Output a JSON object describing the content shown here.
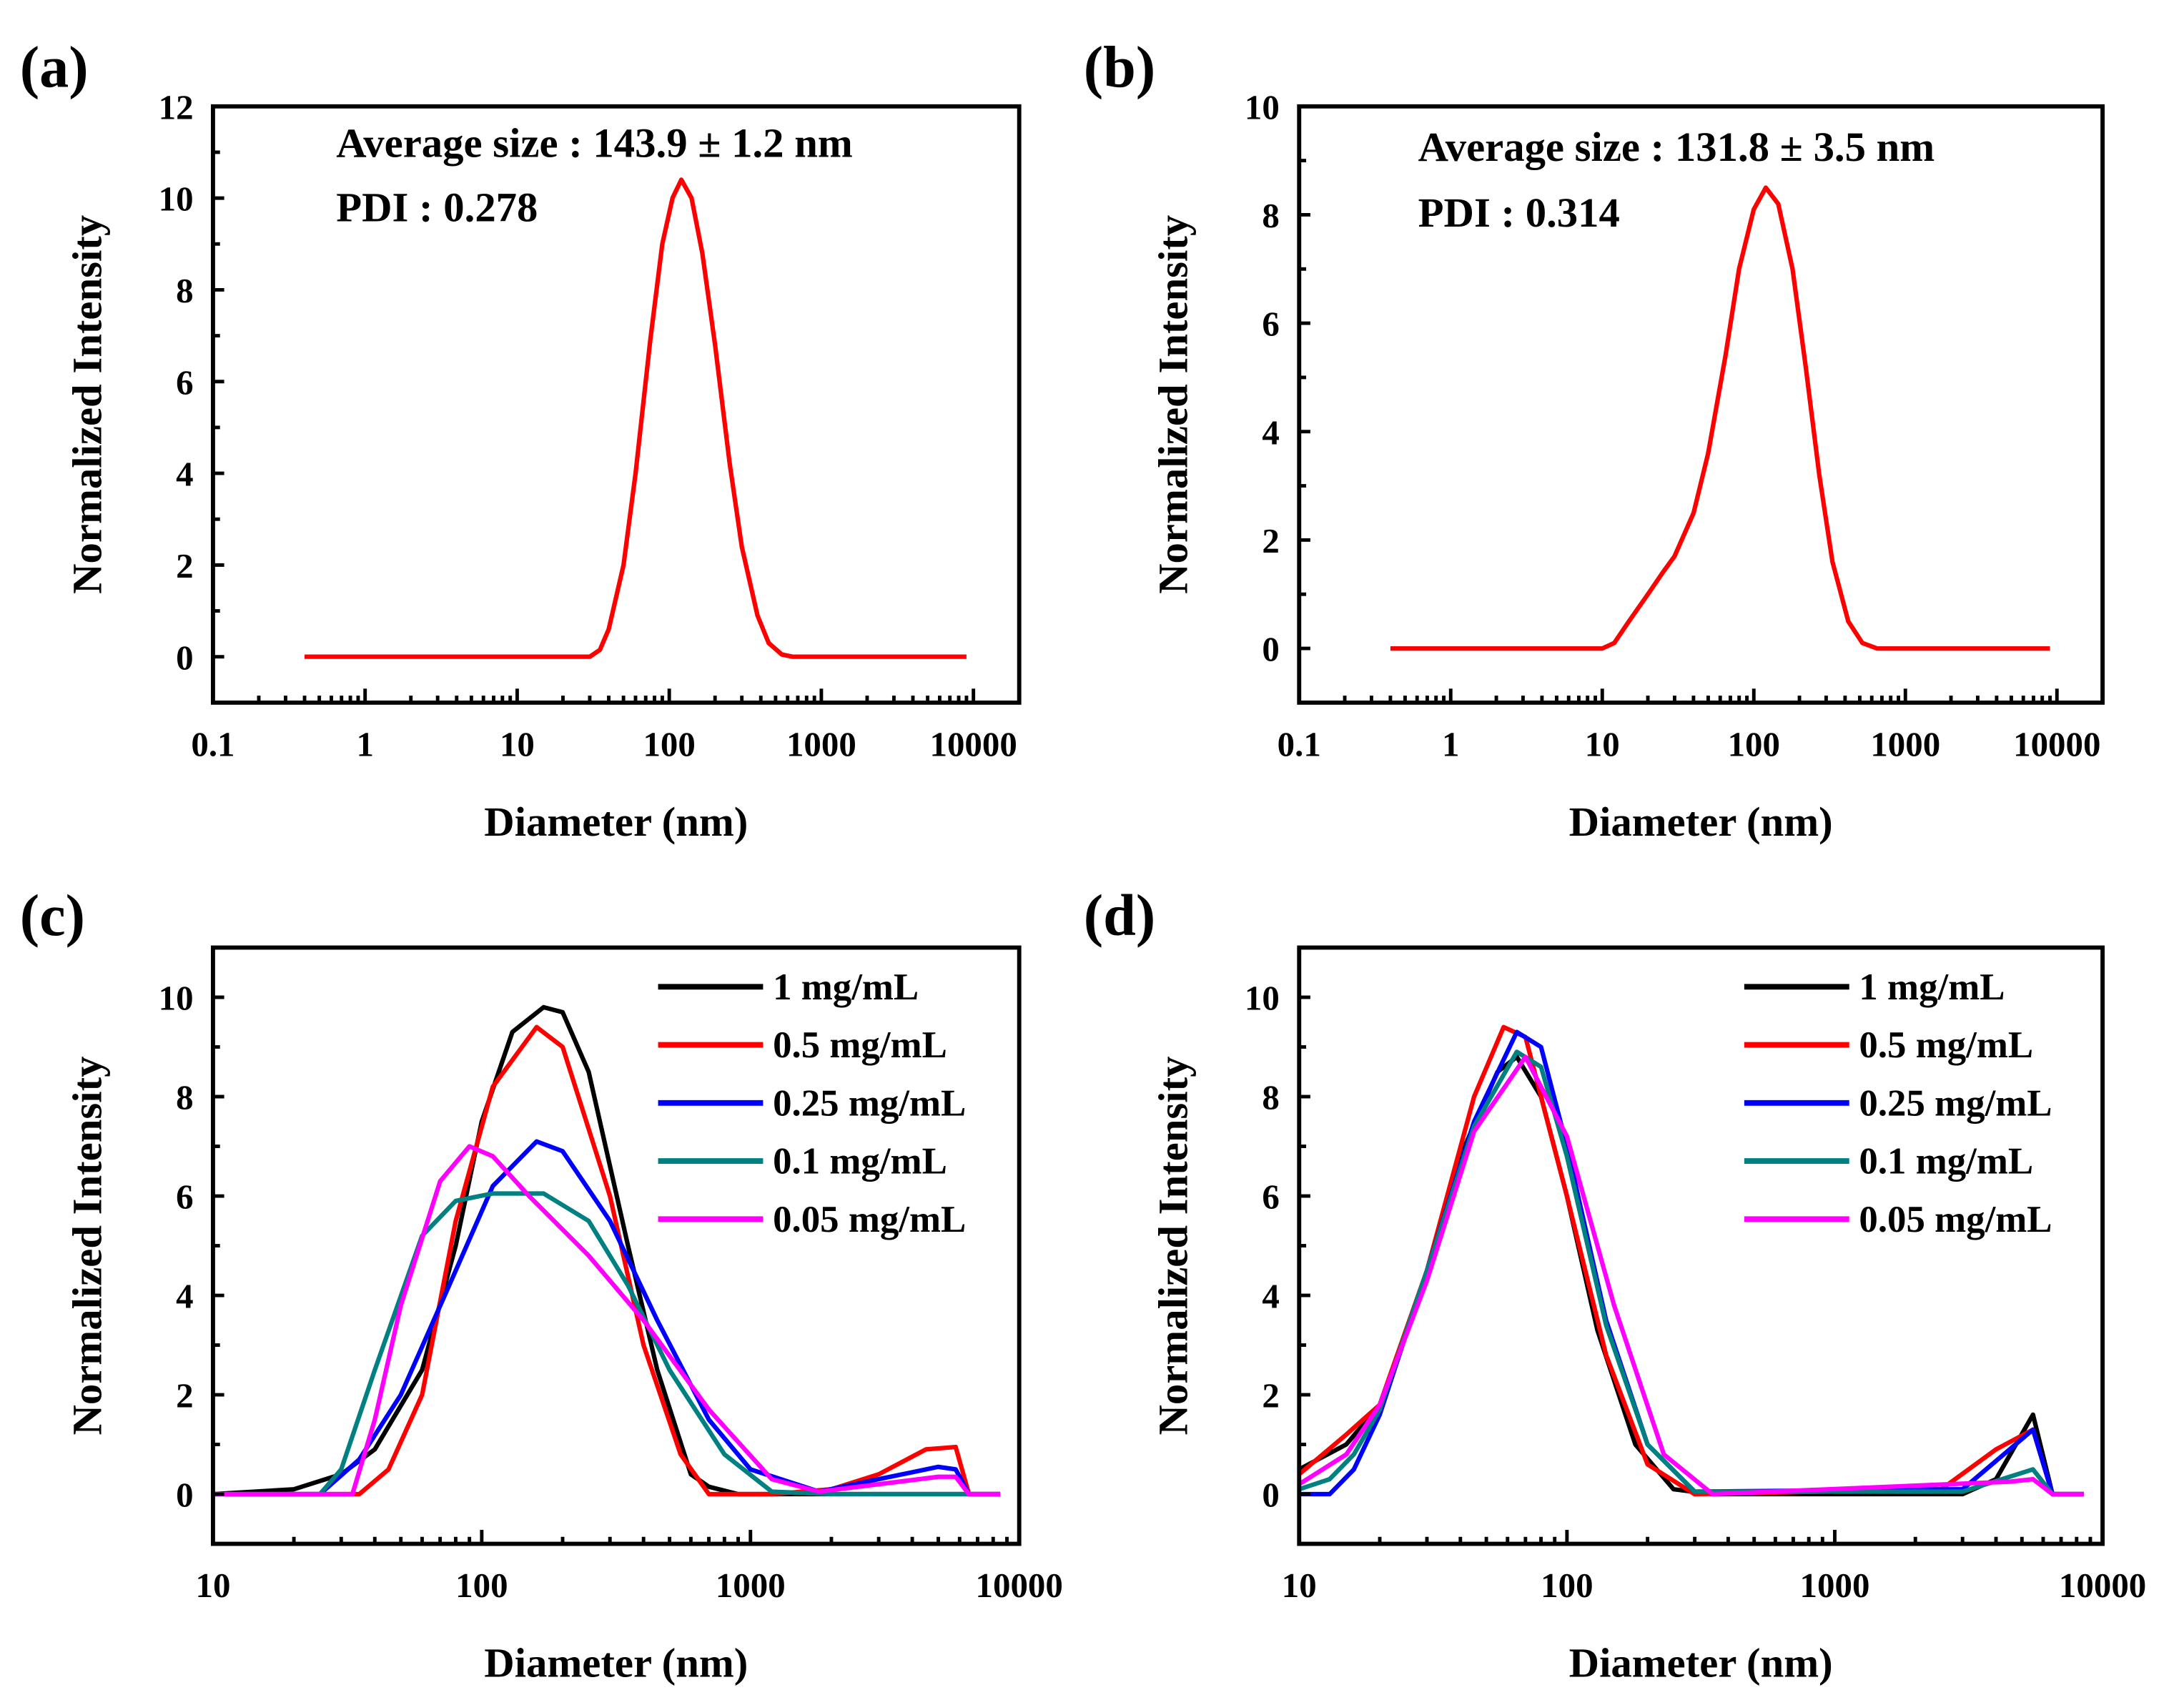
{
  "chart_data": [
    {
      "type": "line",
      "panel_label": "(a)",
      "xlabel": "Diameter (nm)",
      "ylabel": "Normalized Intensity",
      "xscale": "log",
      "xlim": [
        0.1,
        20000
      ],
      "ylim": [
        -1,
        12
      ],
      "xticks": [
        0.1,
        1,
        10,
        100,
        1000,
        10000
      ],
      "xtick_labels": [
        "0.1",
        "1",
        "10",
        "100",
        "1000",
        "10000"
      ],
      "yticks": [
        0,
        2,
        4,
        6,
        8,
        10,
        12
      ],
      "ytick_labels": [
        "0",
        "2",
        "4",
        "6",
        "8",
        "10",
        "12"
      ],
      "annotations": [
        "Average size : 143.9 ±  1.2 nm",
        "PDI : 0.278"
      ],
      "series": [
        {
          "name": "",
          "color": "#ff0000",
          "x": [
            0.4,
            10,
            30,
            35,
            40,
            50,
            60,
            75,
            90,
            105,
            120,
            140,
            165,
            200,
            250,
            300,
            380,
            450,
            550,
            650,
            1000,
            9000
          ],
          "y": [
            0,
            0,
            0,
            0.15,
            0.6,
            2.0,
            4.0,
            6.9,
            9.0,
            10.0,
            10.4,
            10.0,
            8.8,
            6.8,
            4.2,
            2.4,
            0.9,
            0.3,
            0.05,
            0,
            0,
            0
          ]
        }
      ]
    },
    {
      "type": "line",
      "panel_label": "(b)",
      "xlabel": "Diameter (nm)",
      "ylabel": "Normalized Intensity",
      "xscale": "log",
      "xlim": [
        0.1,
        20000
      ],
      "ylim": [
        -1,
        10
      ],
      "xticks": [
        0.1,
        1,
        10,
        100,
        1000,
        10000
      ],
      "xtick_labels": [
        "0.1",
        "1",
        "10",
        "100",
        "1000",
        "10000"
      ],
      "yticks": [
        0,
        2,
        4,
        6,
        8,
        10
      ],
      "ytick_labels": [
        "0",
        "2",
        "4",
        "6",
        "8",
        "10"
      ],
      "annotations": [
        "Average size : 131.8 ±  3.5 nm",
        "PDI :  0.314"
      ],
      "series": [
        {
          "name": "",
          "color": "#ff0000",
          "x": [
            0.4,
            10,
            12,
            15,
            20,
            25,
            30,
            40,
            50,
            65,
            80,
            100,
            120,
            145,
            180,
            220,
            270,
            330,
            420,
            520,
            650,
            1000,
            9000
          ],
          "y": [
            0,
            0,
            0.1,
            0.5,
            1.0,
            1.4,
            1.7,
            2.5,
            3.6,
            5.4,
            7.0,
            8.1,
            8.5,
            8.2,
            7.0,
            5.2,
            3.2,
            1.6,
            0.5,
            0.1,
            0,
            0,
            0
          ]
        }
      ]
    },
    {
      "type": "line",
      "panel_label": "(c)",
      "xlabel": "Diameter (nm)",
      "ylabel": "Normalized Intensity",
      "xscale": "log",
      "xlim": [
        10,
        10000
      ],
      "ylim": [
        -1,
        11
      ],
      "xticks": [
        10,
        100,
        1000,
        10000
      ],
      "xtick_labels": [
        "10",
        "100",
        "1000",
        "10000"
      ],
      "yticks": [
        0,
        2,
        4,
        6,
        8,
        10
      ],
      "ytick_labels": [
        "0",
        "2",
        "4",
        "6",
        "8",
        "10"
      ],
      "legend_position": "top-right",
      "series": [
        {
          "name": "1 mg/mL",
          "color": "#000000",
          "x": [
            10,
            20,
            30,
            40,
            60,
            80,
            100,
            130,
            170,
            200,
            250,
            350,
            450,
            600,
            700,
            900,
            6500,
            8500
          ],
          "y": [
            0,
            0.1,
            0.4,
            0.9,
            2.5,
            5.0,
            7.5,
            9.3,
            9.8,
            9.7,
            8.5,
            5.0,
            2.5,
            0.4,
            0.15,
            0,
            0,
            0
          ]
        },
        {
          "name": "0.5 mg/mL",
          "color": "#ff0000",
          "x": [
            10,
            35,
            45,
            60,
            80,
            110,
            160,
            200,
            300,
            400,
            550,
            700,
            1200,
            2000,
            3000,
            4500,
            5800,
            6500,
            8500
          ],
          "y": [
            0,
            0,
            0.5,
            2.0,
            5.5,
            8.2,
            9.4,
            9.0,
            6.0,
            3.0,
            0.8,
            0,
            0,
            0.1,
            0.4,
            0.9,
            0.95,
            0,
            0
          ]
        },
        {
          "name": "0.25 mg/mL",
          "color": "#0000ff",
          "x": [
            10,
            25,
            35,
            50,
            80,
            110,
            160,
            200,
            300,
            450,
            700,
            1000,
            1800,
            3000,
            5000,
            5800,
            6500,
            8500
          ],
          "y": [
            0,
            0,
            0.7,
            2.0,
            4.5,
            6.2,
            7.1,
            6.9,
            5.5,
            3.5,
            1.5,
            0.5,
            0.05,
            0.3,
            0.55,
            0.5,
            0,
            0
          ]
        },
        {
          "name": "0.1 mg/mL",
          "color": "#008080",
          "x": [
            10,
            25,
            30,
            40,
            60,
            80,
            110,
            170,
            250,
            350,
            500,
            800,
            1200,
            2000,
            6500,
            8500
          ],
          "y": [
            0,
            0,
            0.5,
            2.5,
            5.2,
            5.9,
            6.05,
            6.05,
            5.5,
            4.2,
            2.5,
            0.8,
            0.05,
            0,
            0,
            0
          ]
        },
        {
          "name": "0.05 mg/mL",
          "color": "#ff00ff",
          "x": [
            10,
            33,
            40,
            50,
            70,
            90,
            110,
            150,
            250,
            400,
            700,
            1200,
            1800,
            3000,
            5000,
            5800,
            6500,
            8500
          ],
          "y": [
            0,
            0,
            1.5,
            3.8,
            6.3,
            7.0,
            6.8,
            6.0,
            4.8,
            3.5,
            1.7,
            0.3,
            0.05,
            0.2,
            0.35,
            0.35,
            0,
            0
          ]
        }
      ]
    },
    {
      "type": "line",
      "panel_label": "(d)",
      "xlabel": "Diameter (nm)",
      "ylabel": "Normalized Intensity",
      "xscale": "log",
      "xlim": [
        10,
        10000
      ],
      "ylim": [
        -1,
        11
      ],
      "xticks": [
        10,
        100,
        1000,
        10000
      ],
      "xtick_labels": [
        "10",
        "100",
        "1000",
        "10000"
      ],
      "yticks": [
        0,
        2,
        4,
        6,
        8,
        10
      ],
      "ytick_labels": [
        "0",
        "2",
        "4",
        "6",
        "8",
        "10"
      ],
      "legend_position": "top-right",
      "series": [
        {
          "name": "1 mg/mL",
          "color": "#000000",
          "x": [
            10,
            15,
            20,
            30,
            40,
            55,
            65,
            80,
            100,
            130,
            180,
            250,
            350,
            3000,
            4000,
            5500,
            6500,
            8500
          ],
          "y": [
            0.5,
            1.0,
            1.8,
            4.5,
            6.8,
            8.5,
            8.8,
            8.0,
            6.0,
            3.3,
            1.0,
            0.1,
            0,
            0,
            0.3,
            1.6,
            0,
            0
          ]
        },
        {
          "name": "0.5 mg/mL",
          "color": "#ff0000",
          "x": [
            10,
            15,
            20,
            30,
            45,
            58,
            70,
            100,
            140,
            200,
            300,
            2500,
            4000,
            5500,
            6500,
            8500
          ],
          "y": [
            0.4,
            1.2,
            1.8,
            4.5,
            8.0,
            9.4,
            9.2,
            6.0,
            2.8,
            0.6,
            0,
            0.1,
            0.9,
            1.3,
            0,
            0
          ]
        },
        {
          "name": "0.25 mg/mL",
          "color": "#0000ff",
          "x": [
            10,
            13,
            16,
            20,
            30,
            45,
            65,
            80,
            100,
            140,
            200,
            300,
            3000,
            5500,
            6500,
            8500
          ],
          "y": [
            0,
            0,
            0.5,
            1.6,
            4.5,
            7.5,
            9.3,
            9.0,
            7.0,
            3.5,
            1.0,
            0.05,
            0.1,
            1.3,
            0,
            0
          ]
        },
        {
          "name": "0.1 mg/mL",
          "color": "#008080",
          "x": [
            10,
            13,
            16,
            20,
            30,
            45,
            65,
            80,
            100,
            140,
            200,
            300,
            3000,
            5500,
            6500,
            8500
          ],
          "y": [
            0.1,
            0.3,
            0.8,
            1.7,
            4.5,
            7.4,
            8.9,
            8.6,
            6.8,
            3.4,
            1.0,
            0.05,
            0.05,
            0.5,
            0,
            0
          ]
        },
        {
          "name": "0.05 mg/mL",
          "color": "#ff00ff",
          "x": [
            10,
            15,
            20,
            30,
            45,
            70,
            100,
            150,
            230,
            350,
            4500,
            5500,
            6500,
            8500
          ],
          "y": [
            0.2,
            0.8,
            1.8,
            4.3,
            7.3,
            8.8,
            7.2,
            3.8,
            0.8,
            0,
            0.25,
            0.3,
            0,
            0
          ]
        }
      ]
    }
  ]
}
